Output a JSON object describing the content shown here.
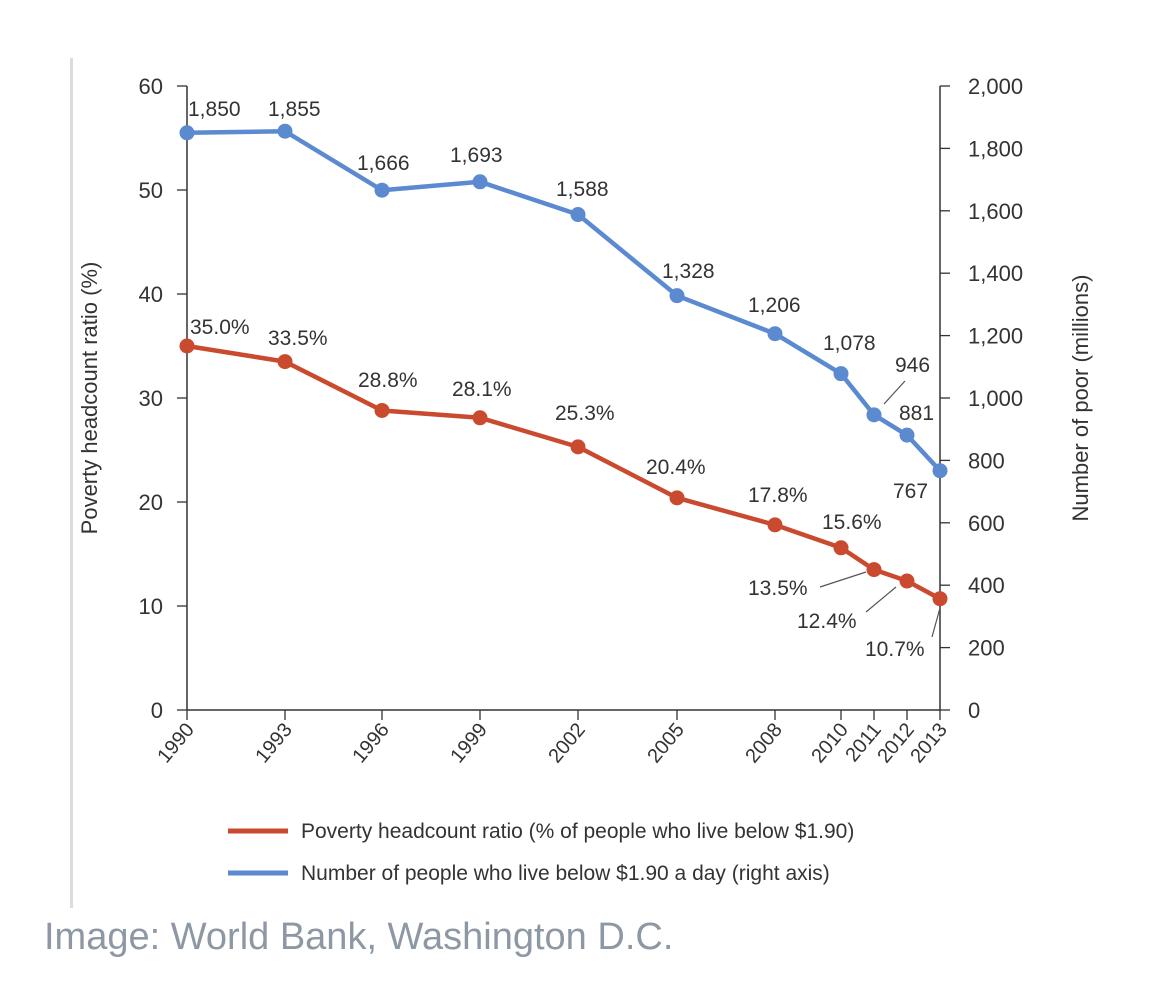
{
  "chart_data": {
    "type": "line",
    "x": [
      "1990",
      "1993",
      "1996",
      "1999",
      "2002",
      "2005",
      "2008",
      "2010",
      "2011",
      "2012",
      "2013"
    ],
    "series": [
      {
        "name": "Poverty headcount ratio (% of people who live below $1.90)",
        "axis": "left",
        "color": "#c94a2f",
        "values": [
          35.0,
          33.5,
          28.8,
          28.1,
          25.3,
          20.4,
          17.8,
          15.6,
          13.5,
          12.4,
          10.7
        ],
        "labels": [
          "35.0%",
          "33.5%",
          "28.8%",
          "28.1%",
          "25.3%",
          "20.4%",
          "17.8%",
          "15.6%",
          "13.5%",
          "12.4%",
          "10.7%"
        ]
      },
      {
        "name": "Number of people who live below $1.90 a day (right axis)",
        "axis": "right",
        "color": "#5b8ad0",
        "values": [
          1850,
          1855,
          1666,
          1693,
          1588,
          1328,
          1206,
          1078,
          946,
          881,
          767
        ],
        "labels": [
          "1,850",
          "1,855",
          "1,666",
          "1,693",
          "1,588",
          "1,328",
          "1,206",
          "1,078",
          "946",
          "881",
          "767"
        ]
      }
    ],
    "ylabel": "Poverty headcount ratio (%)",
    "y2label": "Number of poor (millions)",
    "ylim": [
      0,
      60
    ],
    "y2lim": [
      0,
      2000
    ],
    "yticks": [
      0,
      10,
      20,
      30,
      40,
      50,
      60
    ],
    "y2ticks": [
      "0",
      "200",
      "400",
      "600",
      "800",
      "1,000",
      "1,200",
      "1,400",
      "1,600",
      "1,800",
      "2,000"
    ],
    "grid": false,
    "legend_position": "bottom"
  },
  "caption": "Image: World Bank, Washington D.C."
}
